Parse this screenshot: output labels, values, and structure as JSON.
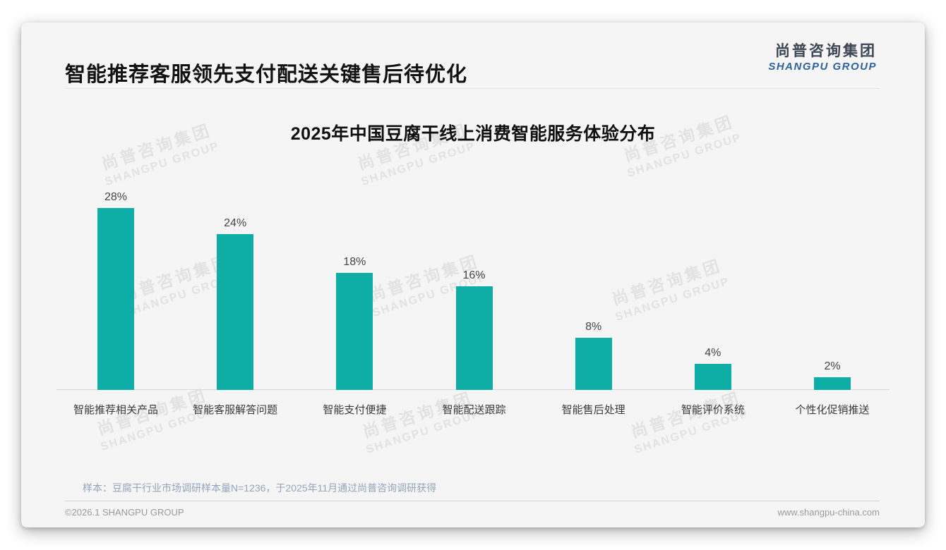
{
  "header": {
    "title": "智能推荐客服领先支付配送关键售后待优化",
    "logo_cn": "尚普咨询集团",
    "logo_en": "SHANGPU GROUP"
  },
  "chart_data": {
    "type": "bar",
    "title": "2025年中国豆腐干线上消费智能服务体验分布",
    "categories": [
      "智能推荐相关产品",
      "智能客服解答问题",
      "智能支付便捷",
      "智能配送跟踪",
      "智能售后处理",
      "智能评价系统",
      "个性化促销推送"
    ],
    "values": [
      28,
      24,
      18,
      16,
      8,
      4,
      2
    ],
    "labels": [
      "28%",
      "24%",
      "18%",
      "16%",
      "8%",
      "4%",
      "2%"
    ],
    "unit": "%",
    "ylim": [
      0,
      30
    ],
    "grid": false,
    "legend": false,
    "xlabel": "",
    "ylabel": ""
  },
  "watermark": {
    "line1": "尚普咨询集团",
    "line2": "SHANGPU GROUP"
  },
  "footnote": {
    "text": "样本：豆腐干行业市场调研样本量N=1236，于2025年11月通过尚普咨询调研获得"
  },
  "footer": {
    "left": "©2026.1 SHANGPU GROUP",
    "right": "www.shangpu-china.com"
  },
  "colors": {
    "bar": "#0eada5",
    "logo_blue": "#2d639c",
    "background": "#f5f5f6",
    "note_text": "#94a4ba",
    "footer_text": "#9a9a9a"
  }
}
